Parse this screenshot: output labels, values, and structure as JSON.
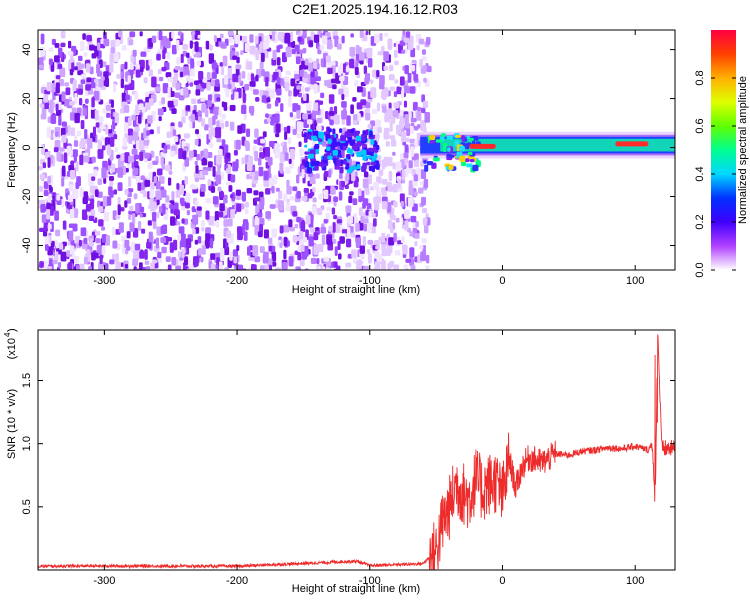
{
  "title": "C2E1.2025.194.16.12.R03",
  "colors": {
    "signal": "#ee2b2b",
    "speckle": "#7a1fe0",
    "band": "#12d4b8",
    "hot": "#ff2a2a"
  },
  "chart_data": [
    {
      "type": "heatmap",
      "xlabel": "Height of straight line (km)",
      "ylabel": "Frequency (Hz)",
      "xlim": [
        -350,
        130
      ],
      "ylim": [
        -50,
        48
      ],
      "xticks": [
        -300,
        -200,
        -100,
        0,
        100
      ],
      "xtick_labels": [
        "-300",
        "-200",
        "-100",
        "0",
        "100"
      ],
      "yticks": [
        -40,
        -20,
        0,
        20,
        40
      ],
      "ytick_labels": [
        "-40",
        "-20",
        "0",
        "20",
        "40"
      ],
      "colorbar": {
        "label": "Normalized spectral amplitude",
        "range": [
          0,
          1
        ],
        "ticks": [
          0,
          0.2,
          0.4,
          0.6,
          0.8
        ],
        "tick_labels": [
          "0.0",
          "0.2",
          "0.4",
          "0.6",
          "0.8"
        ],
        "colors": [
          "#ffffff",
          "#a000ff",
          "#0000ff",
          "#00d8ff",
          "#00ff60",
          "#d0ff00",
          "#ffb000",
          "#ff0000"
        ]
      },
      "regions": [
        {
          "name": "broadband noise",
          "x": [
            -350,
            -62
          ],
          "y": [
            -50,
            48
          ]
        },
        {
          "name": "noise cluster",
          "x": [
            -150,
            -95
          ],
          "y": [
            -8,
            8
          ]
        },
        {
          "name": "narrow band",
          "x": [
            -62,
            130
          ],
          "y": [
            -2,
            4
          ]
        },
        {
          "name": "peak",
          "x": [
            -25,
            -5
          ],
          "y": [
            0,
            1
          ]
        },
        {
          "name": "peak",
          "x": [
            85,
            110
          ],
          "y": [
            1,
            2
          ]
        }
      ]
    },
    {
      "type": "line",
      "xlabel": "Height of straight line (km)",
      "ylabel": "SNR (10 * v/v)",
      "scale_label": "(x10",
      "scale_exp": "4",
      "xlim": [
        -350,
        130
      ],
      "ylim": [
        0,
        19000
      ],
      "xticks": [
        -300,
        -200,
        -100,
        0,
        100
      ],
      "xtick_labels": [
        "-300",
        "-200",
        "-100",
        "0",
        "100"
      ],
      "yticks": [
        5000,
        10000,
        15000
      ],
      "ytick_labels": [
        "0.5",
        "1.0",
        "1.5"
      ],
      "series": [
        {
          "x": [
            -350,
            -300,
            -200,
            -110,
            -100,
            -60,
            -50,
            -45,
            -40,
            -35,
            -30,
            -25,
            -20,
            -15,
            -10,
            -5,
            0,
            5,
            10,
            15,
            20,
            30,
            40,
            50,
            60,
            70,
            80,
            90,
            100,
            110,
            113,
            115,
            117,
            120,
            130
          ],
          "y": [
            300,
            320,
            300,
            700,
            350,
            500,
            1500,
            3800,
            4900,
            6800,
            6100,
            5600,
            7200,
            6300,
            6800,
            7000,
            5800,
            8800,
            6500,
            8200,
            8900,
            8500,
            9200,
            9100,
            9400,
            9500,
            9700,
            9600,
            9800,
            9500,
            10100,
            4600,
            19000,
            9600,
            9600
          ]
        }
      ]
    }
  ]
}
